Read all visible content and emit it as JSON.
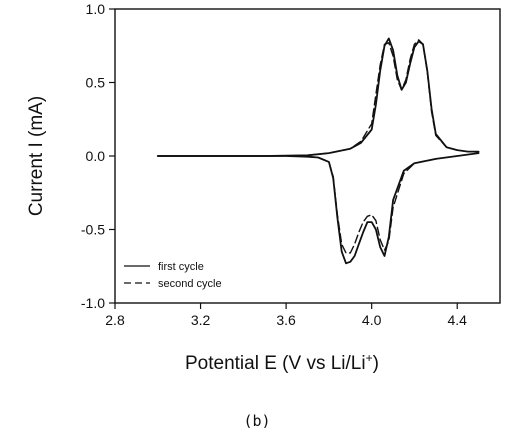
{
  "chart_data": {
    "type": "line",
    "title": "",
    "xlabel": {
      "main": "Potential  E  (V vs Li/Li",
      "sup": "+",
      "end": ")"
    },
    "ylabel": "Current   I  (mA)",
    "xlim": [
      2.8,
      4.6
    ],
    "ylim": [
      -1.0,
      1.0
    ],
    "xticks": [
      "2.8",
      "3.2",
      "3.6",
      "4.0",
      "4.4"
    ],
    "yticks": [
      "1.0",
      "0.5",
      "0.0",
      "-0.5",
      "-1.0"
    ],
    "grid": false,
    "legend_position": "bottom-left",
    "series": [
      {
        "name": "first cycle",
        "style": "solid",
        "forward": {
          "x": [
            3.0,
            3.5,
            3.7,
            3.8,
            3.9,
            3.95,
            4.0,
            4.02,
            4.04,
            4.06,
            4.08,
            4.1,
            4.12,
            4.14,
            4.16,
            4.18,
            4.2,
            4.22,
            4.24,
            4.26,
            4.28,
            4.3,
            4.35,
            4.4,
            4.45,
            4.5
          ],
          "y": [
            0.0,
            0.0,
            0.005,
            0.02,
            0.05,
            0.09,
            0.18,
            0.35,
            0.58,
            0.75,
            0.8,
            0.72,
            0.55,
            0.45,
            0.5,
            0.63,
            0.74,
            0.78,
            0.76,
            0.58,
            0.32,
            0.15,
            0.06,
            0.04,
            0.03,
            0.03
          ]
        },
        "reverse": {
          "x": [
            4.5,
            4.4,
            4.3,
            4.2,
            4.15,
            4.1,
            4.08,
            4.06,
            4.04,
            4.02,
            4.0,
            3.98,
            3.96,
            3.94,
            3.92,
            3.9,
            3.88,
            3.86,
            3.84,
            3.82,
            3.8,
            3.75,
            3.7,
            3.6,
            3.5,
            3.4,
            3.3,
            3.2,
            3.1,
            3.0
          ],
          "y": [
            0.02,
            0.0,
            -0.02,
            -0.05,
            -0.1,
            -0.3,
            -0.55,
            -0.68,
            -0.62,
            -0.5,
            -0.45,
            -0.45,
            -0.52,
            -0.6,
            -0.68,
            -0.72,
            -0.73,
            -0.65,
            -0.42,
            -0.15,
            -0.04,
            -0.01,
            -0.005,
            0.0,
            0.0,
            0.0,
            0.0,
            0.0,
            0.0,
            0.0
          ]
        }
      },
      {
        "name": "second cycle",
        "style": "dashed",
        "forward": {
          "x": [
            3.7,
            3.8,
            3.9,
            3.95,
            4.0,
            4.02,
            4.04,
            4.06,
            4.08,
            4.1,
            4.12,
            4.14,
            4.16,
            4.18,
            4.2,
            4.22,
            4.24,
            4.26,
            4.28,
            4.3,
            4.35,
            4.4
          ],
          "y": [
            0.005,
            0.02,
            0.05,
            0.1,
            0.22,
            0.42,
            0.62,
            0.76,
            0.77,
            0.68,
            0.52,
            0.45,
            0.52,
            0.66,
            0.76,
            0.79,
            0.76,
            0.57,
            0.3,
            0.14,
            0.06,
            0.04
          ]
        },
        "reverse": {
          "x": [
            4.3,
            4.2,
            4.15,
            4.1,
            4.08,
            4.06,
            4.04,
            4.02,
            4.0,
            3.98,
            3.96,
            3.94,
            3.92,
            3.9,
            3.88,
            3.86,
            3.84,
            3.82,
            3.8,
            3.75,
            3.7
          ],
          "y": [
            -0.02,
            -0.05,
            -0.12,
            -0.35,
            -0.58,
            -0.64,
            -0.57,
            -0.44,
            -0.4,
            -0.41,
            -0.45,
            -0.52,
            -0.6,
            -0.66,
            -0.66,
            -0.6,
            -0.4,
            -0.14,
            -0.04,
            -0.01,
            -0.005
          ]
        }
      }
    ],
    "caption": "(b)"
  }
}
